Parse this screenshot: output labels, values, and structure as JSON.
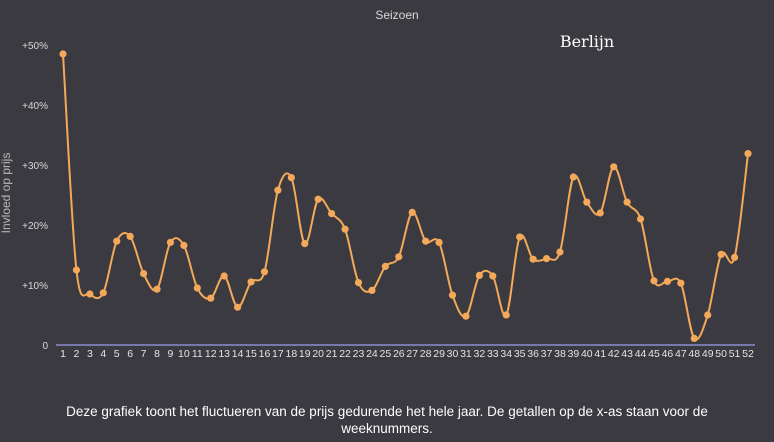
{
  "chart_data": {
    "type": "line",
    "title": "Seizoen",
    "annotation": "Berlijn",
    "ylabel": "Invloed op prijs",
    "xlabel": "",
    "ylim": [
      0,
      50
    ],
    "yticks": [
      "0",
      "+10%",
      "+20%",
      "+30%",
      "+40%",
      "+50%"
    ],
    "ytick_values": [
      0,
      10,
      20,
      30,
      40,
      50
    ],
    "x": [
      1,
      2,
      3,
      4,
      5,
      6,
      7,
      8,
      9,
      10,
      11,
      12,
      13,
      14,
      15,
      16,
      17,
      18,
      19,
      20,
      21,
      22,
      23,
      24,
      25,
      26,
      27,
      28,
      29,
      30,
      31,
      32,
      33,
      34,
      35,
      36,
      37,
      38,
      39,
      40,
      41,
      42,
      43,
      44,
      45,
      46,
      47,
      48,
      49,
      50,
      51,
      52
    ],
    "series": [
      {
        "values": [
          48.5,
          12.5,
          8.5,
          8.7,
          17.3,
          18.1,
          11.9,
          9.3,
          17.1,
          16.6,
          9.5,
          7.8,
          11.5,
          6.3,
          10.5,
          12.2,
          25.8,
          27.9,
          16.9,
          24.3,
          21.9,
          19.3,
          10.4,
          9.1,
          13.1,
          14.7,
          22.1,
          17.3,
          17.1,
          8.3,
          4.8,
          11.6,
          11.5,
          5.0,
          18.0,
          14.3,
          14.4,
          15.5,
          28.0,
          23.8,
          22.0,
          29.7,
          23.8,
          21.0,
          10.7,
          10.6,
          10.3,
          1.1,
          5.0,
          15.1,
          14.6,
          31.9
        ]
      }
    ],
    "grid": false,
    "colors": {
      "line": "#f4a85a",
      "background": "#3b3a40",
      "axis": "#8b8ccf"
    }
  },
  "caption": {
    "line1": "Deze grafiek toont het fluctueren van de prijs gedurende het hele jaar. De getallen op de x-as staan voor de",
    "line2": "weeknummers."
  }
}
